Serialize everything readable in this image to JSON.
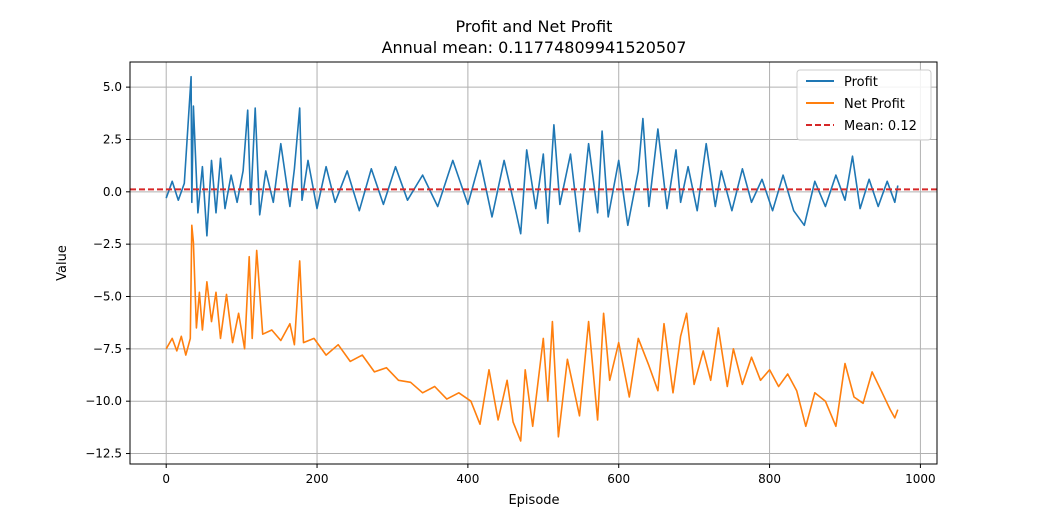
{
  "chart_data": {
    "type": "line",
    "title": "Profit and Net Profit",
    "subtitle": "Annual mean: 0.11774809941520507",
    "xlabel": "Episode",
    "ylabel": "Value",
    "xlim": [
      -48,
      1022
    ],
    "ylim": [
      -13.0,
      6.2
    ],
    "x_ticks": [
      0,
      200,
      400,
      600,
      800,
      1000
    ],
    "x_tick_labels": [
      "0",
      "200",
      "400",
      "600",
      "800",
      "1000"
    ],
    "y_ticks": [
      5.0,
      2.5,
      0.0,
      -2.5,
      -5.0,
      -7.5,
      -10.0,
      -12.5
    ],
    "y_tick_labels": [
      "5.0",
      "2.5",
      "0.0",
      "−2.5",
      "−5.0",
      "−7.5",
      "−10.0",
      "−12.5"
    ],
    "grid": true,
    "legend_position": "top-right",
    "series": [
      {
        "name": "Profit",
        "color": "#1f77b4",
        "x": [
          0,
          8,
          16,
          24,
          33,
          34,
          36,
          42,
          48,
          54,
          60,
          66,
          72,
          78,
          86,
          94,
          102,
          108,
          112,
          118,
          124,
          132,
          142,
          152,
          164,
          170,
          177,
          180,
          188,
          200,
          212,
          224,
          240,
          256,
          272,
          288,
          304,
          320,
          340,
          360,
          380,
          400,
          416,
          432,
          448,
          464,
          470,
          478,
          490,
          500,
          506,
          514,
          522,
          536,
          548,
          560,
          572,
          578,
          586,
          600,
          612,
          626,
          632,
          640,
          652,
          664,
          676,
          682,
          692,
          704,
          716,
          728,
          736,
          750,
          764,
          776,
          790,
          804,
          818,
          832,
          846,
          860,
          874,
          888,
          900,
          910,
          920,
          932,
          944,
          956,
          966,
          970
        ],
        "y": [
          -0.3,
          0.5,
          -0.4,
          0.4,
          5.5,
          -0.5,
          4.1,
          -1.0,
          1.2,
          -2.1,
          1.5,
          -1.0,
          1.6,
          -0.8,
          0.8,
          -0.5,
          1.0,
          3.9,
          -0.6,
          4.0,
          -1.1,
          1.0,
          -0.5,
          2.3,
          -0.7,
          1.1,
          4.0,
          -0.4,
          1.5,
          -0.8,
          1.2,
          -0.5,
          1.0,
          -0.9,
          1.1,
          -0.6,
          1.2,
          -0.4,
          0.8,
          -0.7,
          1.5,
          -0.6,
          1.5,
          -1.2,
          1.5,
          -1.0,
          -2.0,
          2.0,
          -0.8,
          1.8,
          -1.5,
          3.2,
          -0.6,
          1.8,
          -1.9,
          2.3,
          -1.0,
          2.9,
          -1.2,
          1.5,
          -1.6,
          1.0,
          3.5,
          -0.7,
          3.0,
          -0.8,
          2.0,
          -0.5,
          1.2,
          -0.9,
          2.3,
          -0.7,
          1.0,
          -0.9,
          1.1,
          -0.5,
          0.6,
          -0.9,
          0.8,
          -0.9,
          -1.6,
          0.5,
          -0.7,
          0.8,
          -0.4,
          1.7,
          -0.8,
          0.6,
          -0.7,
          0.5,
          -0.5,
          0.3
        ]
      },
      {
        "name": "Net Profit",
        "color": "#ff7f0e",
        "x": [
          0,
          8,
          14,
          20,
          26,
          32,
          34,
          36,
          40,
          44,
          48,
          54,
          60,
          66,
          72,
          80,
          88,
          96,
          104,
          110,
          114,
          120,
          128,
          140,
          152,
          164,
          170,
          177,
          182,
          196,
          212,
          228,
          244,
          260,
          276,
          292,
          308,
          324,
          340,
          356,
          372,
          388,
          404,
          416,
          428,
          440,
          452,
          460,
          470,
          476,
          486,
          500,
          506,
          512,
          520,
          532,
          548,
          560,
          572,
          580,
          588,
          600,
          614,
          626,
          640,
          652,
          660,
          672,
          682,
          690,
          700,
          712,
          722,
          732,
          744,
          752,
          764,
          776,
          788,
          800,
          812,
          824,
          836,
          848,
          860,
          874,
          888,
          900,
          912,
          924,
          936,
          948,
          960,
          966,
          970
        ],
        "y": [
          -7.5,
          -7.0,
          -7.6,
          -6.9,
          -7.8,
          -7.0,
          -1.6,
          -2.4,
          -6.5,
          -4.8,
          -6.6,
          -4.3,
          -6.2,
          -4.8,
          -7.0,
          -4.9,
          -7.2,
          -5.8,
          -7.5,
          -3.1,
          -7.0,
          -2.8,
          -6.8,
          -6.6,
          -7.1,
          -6.3,
          -7.3,
          -3.3,
          -7.2,
          -7.0,
          -7.8,
          -7.3,
          -8.1,
          -7.8,
          -8.6,
          -8.4,
          -9.0,
          -9.1,
          -9.6,
          -9.3,
          -9.9,
          -9.6,
          -10.0,
          -11.1,
          -8.5,
          -10.9,
          -9.0,
          -11.0,
          -11.9,
          -8.5,
          -11.2,
          -7.0,
          -10.0,
          -6.2,
          -11.7,
          -8.0,
          -10.7,
          -6.2,
          -10.9,
          -5.8,
          -9.0,
          -7.2,
          -9.8,
          -7.0,
          -8.3,
          -9.5,
          -6.3,
          -9.6,
          -6.9,
          -5.8,
          -9.2,
          -7.6,
          -9.0,
          -6.5,
          -9.3,
          -7.5,
          -9.2,
          -7.9,
          -9.0,
          -8.5,
          -9.3,
          -8.7,
          -9.5,
          -11.2,
          -9.6,
          -10.0,
          -11.2,
          -8.2,
          -9.8,
          -10.1,
          -8.6,
          -9.5,
          -10.4,
          -10.8,
          -10.4
        ]
      }
    ],
    "mean_line": {
      "name": "Mean: 0.12",
      "value": 0.1177,
      "color": "#d62728"
    }
  }
}
